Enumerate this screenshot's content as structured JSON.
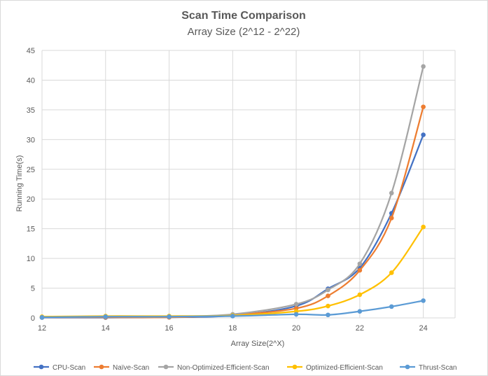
{
  "chart_data": {
    "type": "line",
    "title": "Scan Time Comparison",
    "subtitle": "Array Size (2^12 - 2^22)",
    "xlabel": "Array Size(2^X)",
    "ylabel": "Running Time(s)",
    "xlim": [
      12,
      25
    ],
    "ylim": [
      0,
      45
    ],
    "x_ticks": [
      12,
      14,
      16,
      18,
      20,
      22,
      24
    ],
    "y_ticks": [
      0,
      5,
      10,
      15,
      20,
      25,
      30,
      35,
      40,
      45
    ],
    "grid": "both",
    "legend_position": "bottom",
    "series": [
      {
        "name": "CPU-Scan",
        "color": "#4472C4",
        "points": [
          [
            12,
            0.05
          ],
          [
            14,
            0.05
          ],
          [
            16,
            0.1
          ],
          [
            18,
            0.4
          ],
          [
            20,
            2.0
          ],
          [
            21,
            4.9
          ],
          [
            22,
            8.4
          ],
          [
            23,
            17.6
          ],
          [
            24,
            30.8
          ]
        ]
      },
      {
        "name": "Naïve-Scan",
        "color": "#ED7D31",
        "points": [
          [
            12,
            0.1
          ],
          [
            14,
            0.1
          ],
          [
            16,
            0.1
          ],
          [
            18,
            0.5
          ],
          [
            20,
            1.6
          ],
          [
            21,
            3.7
          ],
          [
            22,
            8.0
          ],
          [
            23,
            16.8
          ],
          [
            24,
            35.5
          ]
        ]
      },
      {
        "name": "Non-Optimized-Efficient-Scan",
        "color": "#A5A5A5",
        "points": [
          [
            12,
            0.1
          ],
          [
            14,
            0.2
          ],
          [
            16,
            0.2
          ],
          [
            18,
            0.6
          ],
          [
            20,
            2.3
          ],
          [
            21,
            4.7
          ],
          [
            22,
            9.1
          ],
          [
            23,
            21.0
          ],
          [
            24,
            42.3
          ]
        ]
      },
      {
        "name": "Optimized-Efficient-Scan",
        "color": "#FFC000",
        "points": [
          [
            12,
            0.2
          ],
          [
            14,
            0.3
          ],
          [
            16,
            0.3
          ],
          [
            18,
            0.4
          ],
          [
            20,
            1.1
          ],
          [
            21,
            2.0
          ],
          [
            22,
            3.9
          ],
          [
            23,
            7.6
          ],
          [
            24,
            15.3
          ]
        ]
      },
      {
        "name": "Thrust-Scan",
        "color": "#5B9BD5",
        "points": [
          [
            12,
            0.1
          ],
          [
            14,
            0.2
          ],
          [
            16,
            0.2
          ],
          [
            18,
            0.3
          ],
          [
            20,
            0.6
          ],
          [
            21,
            0.5
          ],
          [
            22,
            1.1
          ],
          [
            23,
            1.9
          ],
          [
            24,
            2.9
          ]
        ]
      }
    ]
  }
}
